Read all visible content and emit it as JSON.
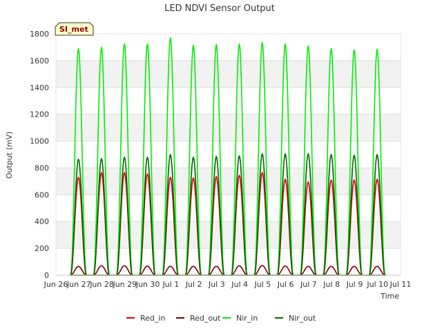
{
  "chart_data": {
    "type": "line",
    "title": "LED NDVI Sensor Output",
    "xlabel": "Time",
    "ylabel": "Output (mV)",
    "badge": "SI_met",
    "ylim": [
      0,
      1800
    ],
    "yticks": [
      0,
      200,
      400,
      600,
      800,
      1000,
      1200,
      1400,
      1600,
      1800
    ],
    "xlim": [
      0,
      15
    ],
    "xtick_labels": [
      "Jun 26",
      "Jun 27",
      "Jun 28",
      "Jun 29",
      "Jun 30",
      "Jul 1",
      "Jul 2",
      "Jul 3",
      "Jul 4",
      "Jul 5",
      "Jul 6",
      "Jul 7",
      "Jul 8",
      "Jul 9",
      "Jul 10",
      "Jul 11"
    ],
    "peak_days": [
      1,
      2,
      3,
      4,
      5,
      6,
      7,
      8,
      9,
      10,
      11,
      12,
      13,
      14
    ],
    "series": [
      {
        "name": "Red_in",
        "color": "#dd0000",
        "peaks": [
          730,
          765,
          765,
          755,
          730,
          725,
          735,
          745,
          765,
          715,
          695,
          710,
          710,
          715
        ]
      },
      {
        "name": "Red_out",
        "color": "#770000",
        "peaks": [
          65,
          70,
          70,
          68,
          66,
          66,
          66,
          70,
          72,
          68,
          66,
          66,
          66,
          66
        ]
      },
      {
        "name": "Nir_in",
        "color": "#00ee00",
        "peaks": [
          1690,
          1700,
          1725,
          1725,
          1770,
          1715,
          1720,
          1725,
          1735,
          1725,
          1710,
          1690,
          1680,
          1685
        ]
      },
      {
        "name": "Nir_out",
        "color": "#006600",
        "peaks": [
          865,
          870,
          880,
          880,
          900,
          880,
          885,
          890,
          905,
          905,
          905,
          900,
          895,
          900
        ]
      }
    ]
  }
}
